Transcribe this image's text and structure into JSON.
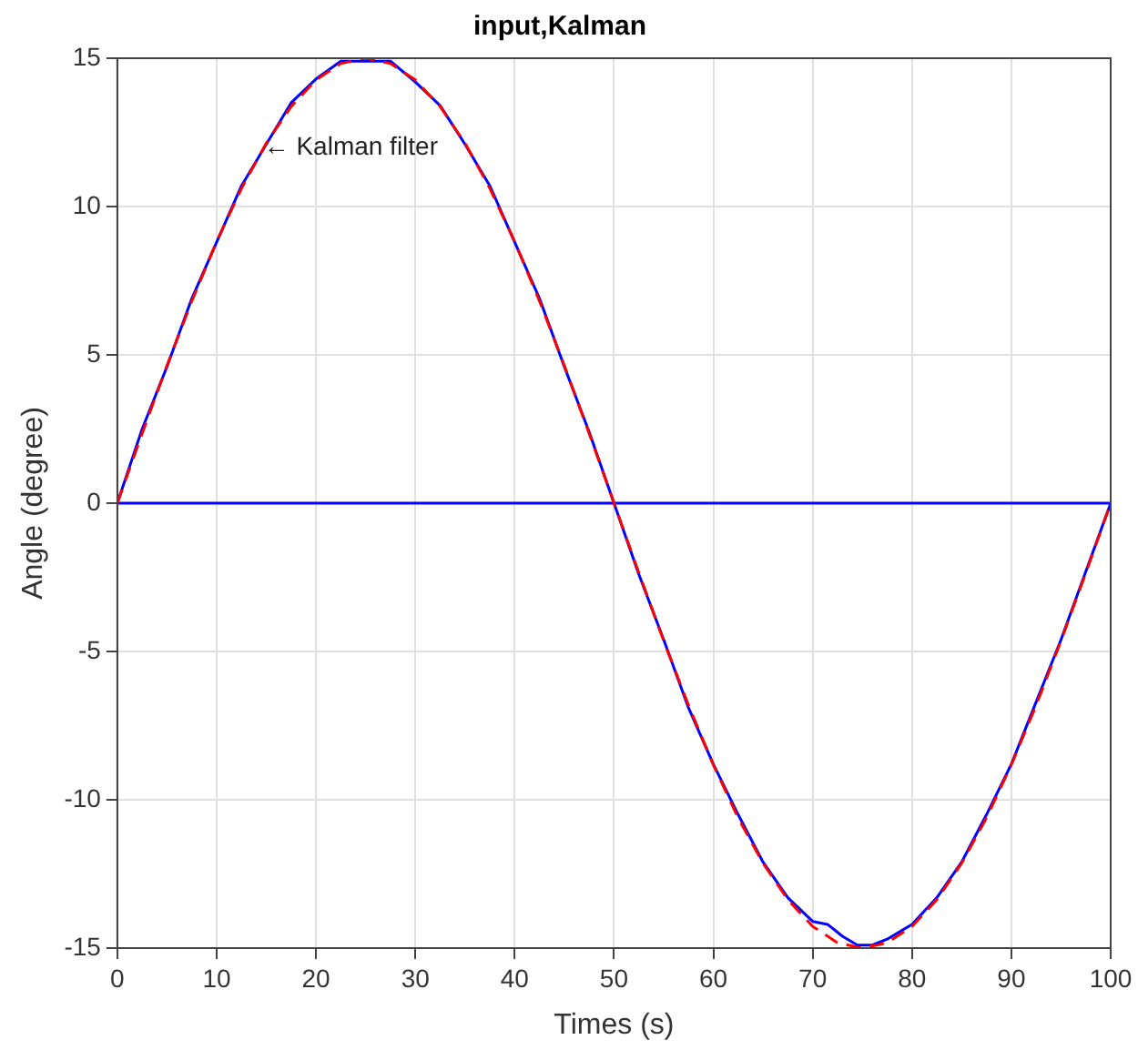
{
  "chart_data": {
    "type": "line",
    "title": "input,Kalman",
    "xlabel": "Times (s)",
    "ylabel": "Angle (degree)",
    "xlim": [
      0,
      100
    ],
    "ylim": [
      -15,
      15
    ],
    "xticks": [
      0,
      10,
      20,
      30,
      40,
      50,
      60,
      70,
      80,
      90,
      100
    ],
    "yticks": [
      -15,
      -10,
      -5,
      0,
      5,
      10,
      15
    ],
    "grid": true,
    "legend": false,
    "annotations": [
      {
        "text": "← Kalman filter",
        "x": 14,
        "y": 12
      }
    ],
    "series": [
      {
        "color": "#ff0000",
        "line_style": "dashed",
        "x": [
          0,
          2.5,
          5,
          7.5,
          10,
          12.5,
          15,
          17.5,
          20,
          22.5,
          25,
          27.5,
          30,
          32.5,
          35,
          37.5,
          40,
          42.5,
          45,
          47.5,
          50,
          52.5,
          55,
          57.5,
          60,
          62.5,
          65,
          67.5,
          70,
          72.5,
          75,
          77.5,
          80,
          82.5,
          85,
          87.5,
          90,
          92.5,
          95,
          97.5,
          100
        ],
        "values": [
          0,
          2.35,
          4.64,
          6.81,
          8.82,
          10.61,
          12.14,
          13.37,
          14.27,
          14.82,
          15,
          14.82,
          14.27,
          13.37,
          12.14,
          10.61,
          8.82,
          6.81,
          4.64,
          2.35,
          0,
          -2.35,
          -4.64,
          -6.81,
          -8.82,
          -10.61,
          -12.14,
          -13.37,
          -14.27,
          -14.82,
          -15,
          -14.82,
          -14.27,
          -13.37,
          -12.14,
          -10.61,
          -8.82,
          -6.81,
          -4.64,
          -2.35,
          0
        ]
      },
      {
        "color": "#0000ff",
        "line_style": "solid",
        "x": [
          0,
          2.5,
          5,
          7.5,
          10,
          12.5,
          15,
          17.5,
          20,
          22.5,
          25,
          27.5,
          30,
          32.5,
          35,
          37.5,
          40,
          42.5,
          45,
          47.5,
          50,
          52.5,
          55,
          57.5,
          60,
          62.5,
          65,
          67.5,
          70,
          71.5,
          73,
          74.5,
          76,
          77.5,
          80,
          82.5,
          85,
          87.5,
          90,
          92.5,
          95,
          97.5,
          100
        ],
        "values": [
          0,
          2.5,
          4.6,
          6.9,
          8.8,
          10.7,
          12.1,
          13.5,
          14.3,
          14.9,
          14.9,
          14.9,
          14.2,
          13.4,
          12.1,
          10.7,
          8.8,
          6.9,
          4.6,
          2.4,
          0,
          -2.4,
          -4.6,
          -6.9,
          -8.8,
          -10.5,
          -12.1,
          -13.3,
          -14.1,
          -14.2,
          -14.6,
          -14.9,
          -14.9,
          -14.7,
          -14.2,
          -13.3,
          -12.1,
          -10.5,
          -8.8,
          -6.7,
          -4.6,
          -2.3,
          0
        ]
      },
      {
        "color": "#0000ff",
        "line_style": "solid",
        "x": [
          0,
          100
        ],
        "values": [
          0,
          0
        ]
      }
    ]
  }
}
